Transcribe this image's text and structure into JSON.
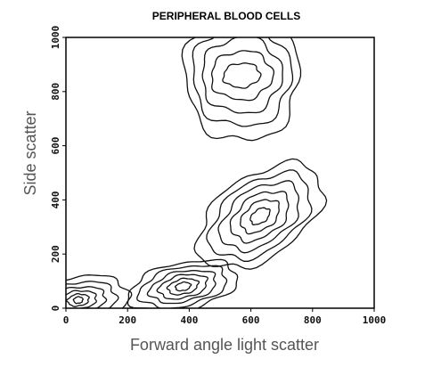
{
  "chart_data": {
    "type": "contour",
    "title": "PERIPHERAL BLOOD CELLS",
    "xlabel": "Forward angle light scatter",
    "ylabel": "Side scatter",
    "xlim": [
      0,
      1000
    ],
    "ylim": [
      0,
      1000
    ],
    "xticks": [
      "0",
      "200",
      "400",
      "600",
      "800",
      "1000"
    ],
    "yticks": [
      "0",
      "200",
      "400",
      "600",
      "800",
      "1000"
    ],
    "xtick_values": [
      0,
      200,
      400,
      600,
      800,
      1000
    ],
    "ytick_values": [
      0,
      200,
      400,
      600,
      800,
      1000
    ],
    "populations": [
      {
        "center": [
          570,
          860
        ],
        "rx": [
          60,
          100,
          130,
          160,
          185
        ],
        "ry": [
          45,
          90,
          140,
          190,
          245
        ],
        "tilt": 5
      },
      {
        "center": [
          630,
          340
        ],
        "rx": [
          35,
          70,
          105,
          145,
          185,
          230
        ],
        "ry": [
          25,
          50,
          75,
          100,
          125,
          150
        ],
        "tilt": 35
      },
      {
        "center": [
          380,
          80
        ],
        "rx": [
          25,
          50,
          80,
          110,
          145,
          180
        ],
        "ry": [
          15,
          28,
          42,
          56,
          72,
          88
        ],
        "tilt": 12
      },
      {
        "center": [
          40,
          30
        ],
        "rx": [
          15,
          35,
          60,
          90,
          125,
          165
        ],
        "ry": [
          12,
          22,
          34,
          48,
          66,
          88
        ],
        "tilt": 8
      }
    ]
  }
}
